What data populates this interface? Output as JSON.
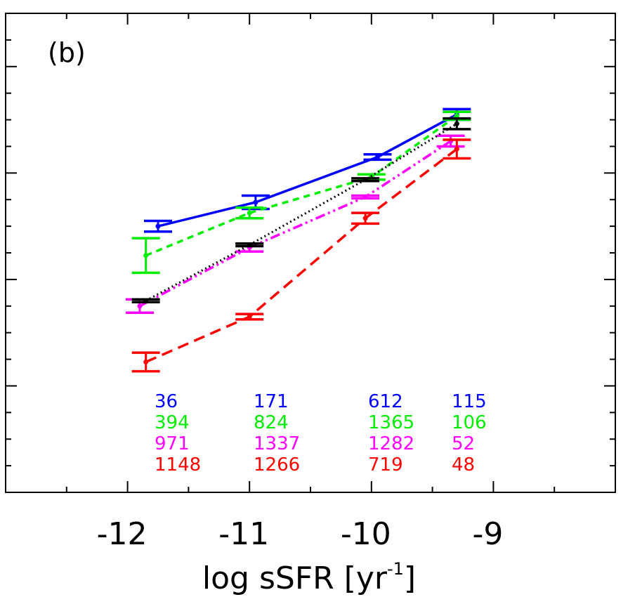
{
  "chart_data": {
    "type": "line",
    "panel_label": "(b)",
    "xlabel_main": "log sSFR [yr",
    "xlabel_sup": "-1",
    "xlabel_end": "]",
    "xlim": [
      -13,
      -8
    ],
    "x_ticks": [
      -12,
      -11,
      -10,
      -9
    ],
    "x_tick_labels": [
      "-12",
      "-11",
      "-10",
      "-9"
    ],
    "ylim": [
      0,
      18
    ],
    "series": [
      {
        "color": "#0000ff",
        "dash": "solid",
        "x": [
          -11.75,
          -10.95,
          -9.95,
          -9.3
        ],
        "y": [
          10.0,
          10.9,
          12.6,
          14.2
        ],
        "err_low": [
          0.2,
          0.25,
          0.1,
          0.2
        ],
        "err_high": [
          0.2,
          0.25,
          0.1,
          0.2
        ],
        "counts": [
          "36",
          "171",
          "612",
          "115"
        ]
      },
      {
        "color": "#00ee00",
        "dash": "dash",
        "x": [
          -11.85,
          -11.0,
          -10.0,
          -9.3
        ],
        "y": [
          8.9,
          10.5,
          11.85,
          14.15
        ],
        "err_low": [
          0.65,
          0.2,
          0.1,
          0.15
        ],
        "err_high": [
          0.65,
          0.2,
          0.1,
          0.15
        ],
        "counts": [
          "394",
          "824",
          "1365",
          "106"
        ]
      },
      {
        "color": "#ff00ff",
        "dash": "dashdotdot",
        "x": [
          -11.9,
          -11.0,
          -10.05,
          -9.35
        ],
        "y": [
          7.0,
          9.2,
          11.1,
          13.2
        ],
        "err_low": [
          0.25,
          0.15,
          0.05,
          0.2
        ],
        "err_high": [
          0.25,
          0.15,
          0.05,
          0.2
        ],
        "counts": [
          "971",
          "1337",
          "1282",
          "52"
        ]
      },
      {
        "color": "#ff0000",
        "dash": "longdash",
        "x": [
          -11.85,
          -11.0,
          -10.05,
          -9.3
        ],
        "y": [
          4.9,
          6.6,
          10.3,
          12.9
        ],
        "err_low": [
          0.35,
          0.1,
          0.2,
          0.35
        ],
        "err_high": [
          0.35,
          0.1,
          0.2,
          0.35
        ],
        "counts": [
          "1148",
          "1266",
          "719",
          "48"
        ]
      },
      {
        "color": "#000000",
        "dash": "dot",
        "x": [
          -11.85,
          -11.0,
          -10.05,
          -9.3
        ],
        "y": [
          7.2,
          9.3,
          11.75,
          13.85
        ],
        "err_low": [
          0.05,
          0.05,
          0.05,
          0.2
        ],
        "err_high": [
          0.05,
          0.05,
          0.05,
          0.2
        ],
        "counts": []
      }
    ]
  }
}
